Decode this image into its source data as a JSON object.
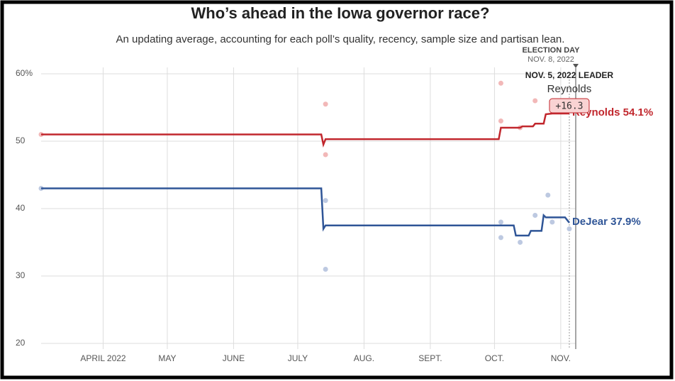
{
  "chart_data": {
    "type": "line",
    "title": "Who’s ahead in the Iowa governor race?",
    "subtitle": "An updating average, accounting for each poll’s quality, recency, sample size and partisan lean.",
    "xlim": [
      "2022-03-03",
      "2022-11-08"
    ],
    "xticks": [
      {
        "value": "2022-04-01",
        "label": "APRIL 2022"
      },
      {
        "value": "2022-05-01",
        "label": "MAY"
      },
      {
        "value": "2022-06-01",
        "label": "JUNE"
      },
      {
        "value": "2022-07-01",
        "label": "JULY"
      },
      {
        "value": "2022-08-01",
        "label": "AUG."
      },
      {
        "value": "2022-09-01",
        "label": "SEPT."
      },
      {
        "value": "2022-10-01",
        "label": "OCT."
      },
      {
        "value": "2022-11-01",
        "label": "NOV."
      }
    ],
    "ylim": [
      20,
      60
    ],
    "yticks": [
      20,
      30,
      40,
      50,
      {
        "value": 60,
        "label": "60%"
      }
    ],
    "grid": true,
    "series": [
      {
        "name": "Reynolds",
        "color": "#c1272d",
        "poll_color": "#f2b8b8",
        "end_label": "Reynolds 54.1%",
        "x": [
          "2022-03-03",
          "2022-07-12",
          "2022-07-13",
          "2022-07-14",
          "2022-10-03",
          "2022-10-04",
          "2022-10-13",
          "2022-10-14",
          "2022-10-19",
          "2022-10-20",
          "2022-10-24",
          "2022-10-25",
          "2022-10-28",
          "2022-11-05"
        ],
        "values": [
          51,
          51,
          49.5,
          50.3,
          50.3,
          52,
          52,
          52.2,
          52.2,
          52.6,
          52.6,
          54,
          54.1,
          54.1
        ],
        "poll_x": [
          "2022-03-03",
          "2022-07-14",
          "2022-07-14",
          "2022-10-04",
          "2022-10-04",
          "2022-10-13",
          "2022-10-20"
        ],
        "poll_values": [
          51,
          55.5,
          48,
          58.6,
          53,
          52,
          56
        ]
      },
      {
        "name": "DeJear",
        "color": "#2f5597",
        "poll_color": "#bdc9e1",
        "end_label": "DeJear 37.9%",
        "x": [
          "2022-03-03",
          "2022-07-12",
          "2022-07-13",
          "2022-07-14",
          "2022-10-10",
          "2022-10-11",
          "2022-10-17",
          "2022-10-18",
          "2022-10-23",
          "2022-10-24",
          "2022-10-25",
          "2022-11-03",
          "2022-11-05"
        ],
        "values": [
          43,
          43,
          37,
          37.5,
          37.5,
          36,
          36,
          36.7,
          36.7,
          39,
          38.7,
          38.7,
          37.9
        ],
        "poll_x": [
          "2022-03-03",
          "2022-07-14",
          "2022-07-14",
          "2022-10-04",
          "2022-10-04",
          "2022-10-13",
          "2022-10-20",
          "2022-10-26",
          "2022-10-28",
          "2022-11-05"
        ],
        "poll_values": [
          43,
          41.2,
          31,
          38,
          35.7,
          35,
          39,
          42,
          38,
          37
        ]
      }
    ],
    "election_day": {
      "date": "2022-11-08",
      "title": "ELECTION DAY",
      "label": "NOV. 8, 2022"
    },
    "leader": {
      "date": "2022-11-05",
      "title": "NOV. 5, 2022 LEADER",
      "name": "Reynolds",
      "margin": "+16.3"
    }
  }
}
